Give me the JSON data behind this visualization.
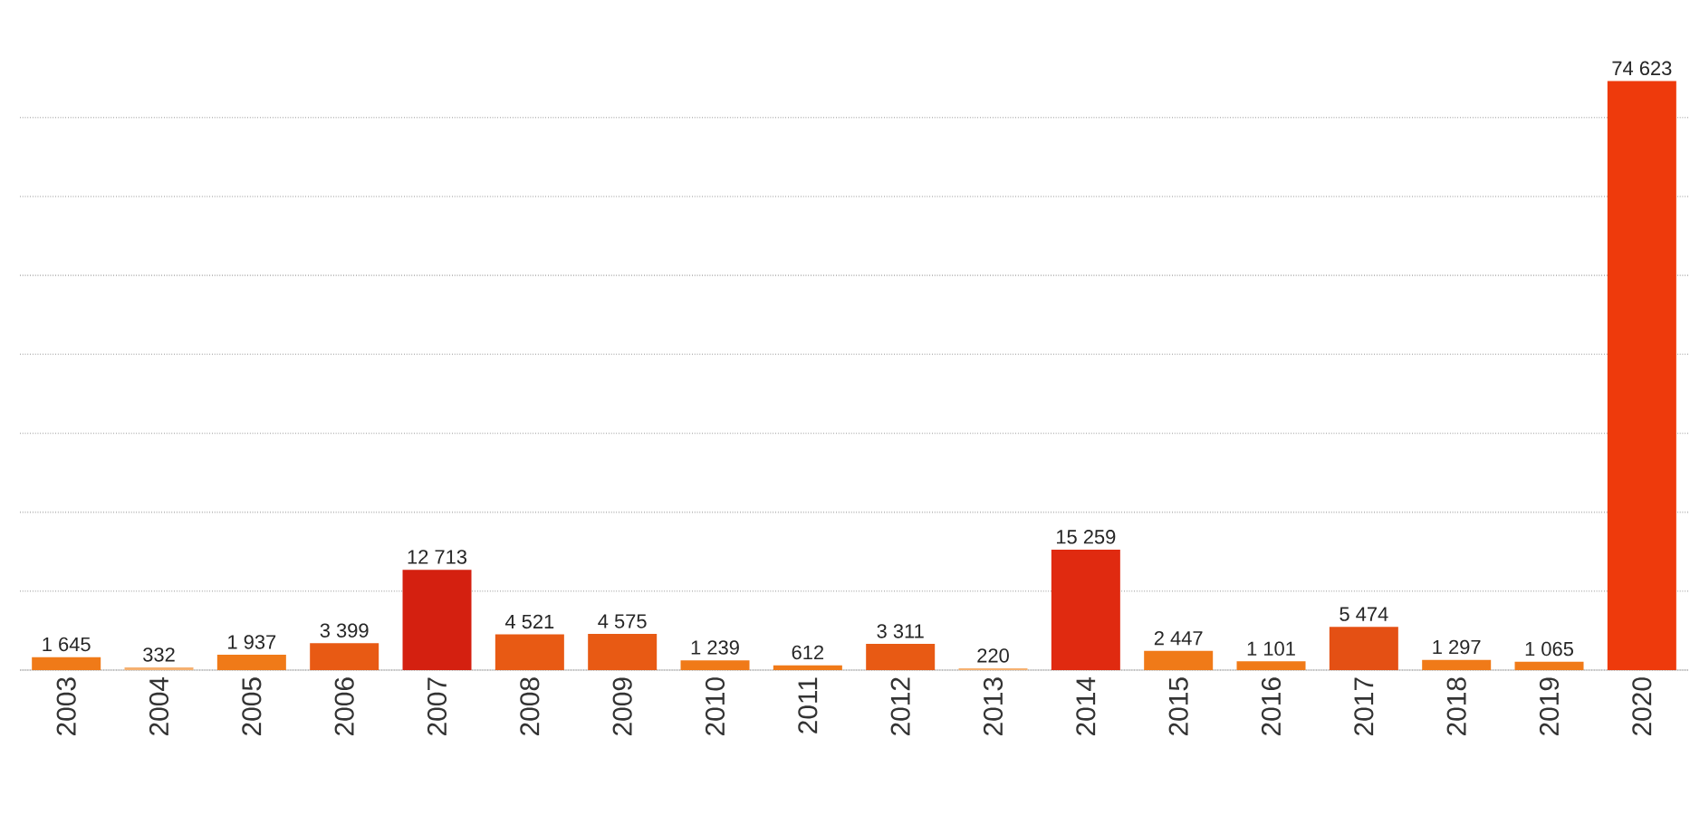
{
  "chart_data": {
    "type": "bar",
    "categories": [
      "2003",
      "2004",
      "2005",
      "2006",
      "2007",
      "2008",
      "2009",
      "2010",
      "2011",
      "2012",
      "2013",
      "2014",
      "2015",
      "2016",
      "2017",
      "2018",
      "2019",
      "2020"
    ],
    "values": [
      1645,
      332,
      1937,
      3399,
      12713,
      4521,
      4575,
      1239,
      612,
      3311,
      220,
      15259,
      2447,
      1101,
      5474,
      1297,
      1065,
      74623
    ],
    "value_labels": [
      "1 645",
      "332",
      "1 937",
      "3 399",
      "12 713",
      "4 521",
      "4 575",
      "1 239",
      "612",
      "3 311",
      "220",
      "15 259",
      "2 447",
      "1 101",
      "5 474",
      "1 297",
      "1 065",
      "74 623"
    ],
    "colors": [
      "#f07a18",
      "#f5b070",
      "#f07a18",
      "#e85a14",
      "#d42010",
      "#e85a14",
      "#e85a14",
      "#f07a18",
      "#f07a18",
      "#e85a14",
      "#f5b070",
      "#e02a10",
      "#f07a18",
      "#f07a18",
      "#e45014",
      "#f07a18",
      "#f07a18",
      "#ee3a0c"
    ],
    "grid": "y",
    "tick_labels": "x"
  }
}
